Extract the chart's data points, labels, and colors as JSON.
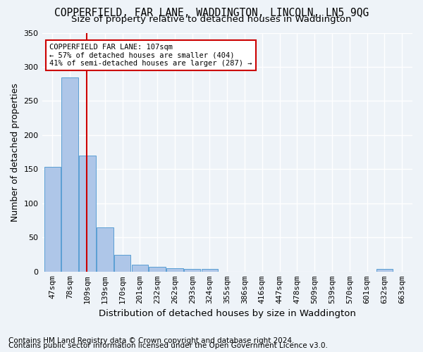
{
  "title1": "COPPERFIELD, FAR LANE, WADDINGTON, LINCOLN, LN5 9QG",
  "title2": "Size of property relative to detached houses in Waddington",
  "xlabel": "Distribution of detached houses by size in Waddington",
  "ylabel": "Number of detached properties",
  "footer1": "Contains HM Land Registry data © Crown copyright and database right 2024.",
  "footer2": "Contains public sector information licensed under the Open Government Licence v3.0.",
  "bins": [
    "47sqm",
    "78sqm",
    "109sqm",
    "139sqm",
    "170sqm",
    "201sqm",
    "232sqm",
    "262sqm",
    "293sqm",
    "324sqm",
    "355sqm",
    "386sqm",
    "416sqm",
    "447sqm",
    "478sqm",
    "509sqm",
    "539sqm",
    "570sqm",
    "601sqm",
    "632sqm",
    "663sqm"
  ],
  "values": [
    153,
    285,
    170,
    65,
    25,
    10,
    7,
    5,
    4,
    4,
    0,
    0,
    0,
    0,
    0,
    0,
    0,
    0,
    0,
    4,
    0
  ],
  "bar_color": "#aec6e8",
  "bar_edge_color": "#5a9fd4",
  "red_line_index": 2,
  "red_line_color": "#cc0000",
  "annotation_line1": "COPPERFIELD FAR LANE: 107sqm",
  "annotation_line2": "← 57% of detached houses are smaller (404)",
  "annotation_line3": "41% of semi-detached houses are larger (287) →",
  "annotation_box_color": "#ffffff",
  "annotation_box_edge": "#cc0000",
  "ylim": [
    0,
    350
  ],
  "yticks": [
    0,
    50,
    100,
    150,
    200,
    250,
    300,
    350
  ],
  "background_color": "#eef3f8",
  "grid_color": "#ffffff",
  "title1_fontsize": 10.5,
  "title2_fontsize": 9.5,
  "axis_label_fontsize": 9,
  "tick_fontsize": 8,
  "footer_fontsize": 7.5
}
